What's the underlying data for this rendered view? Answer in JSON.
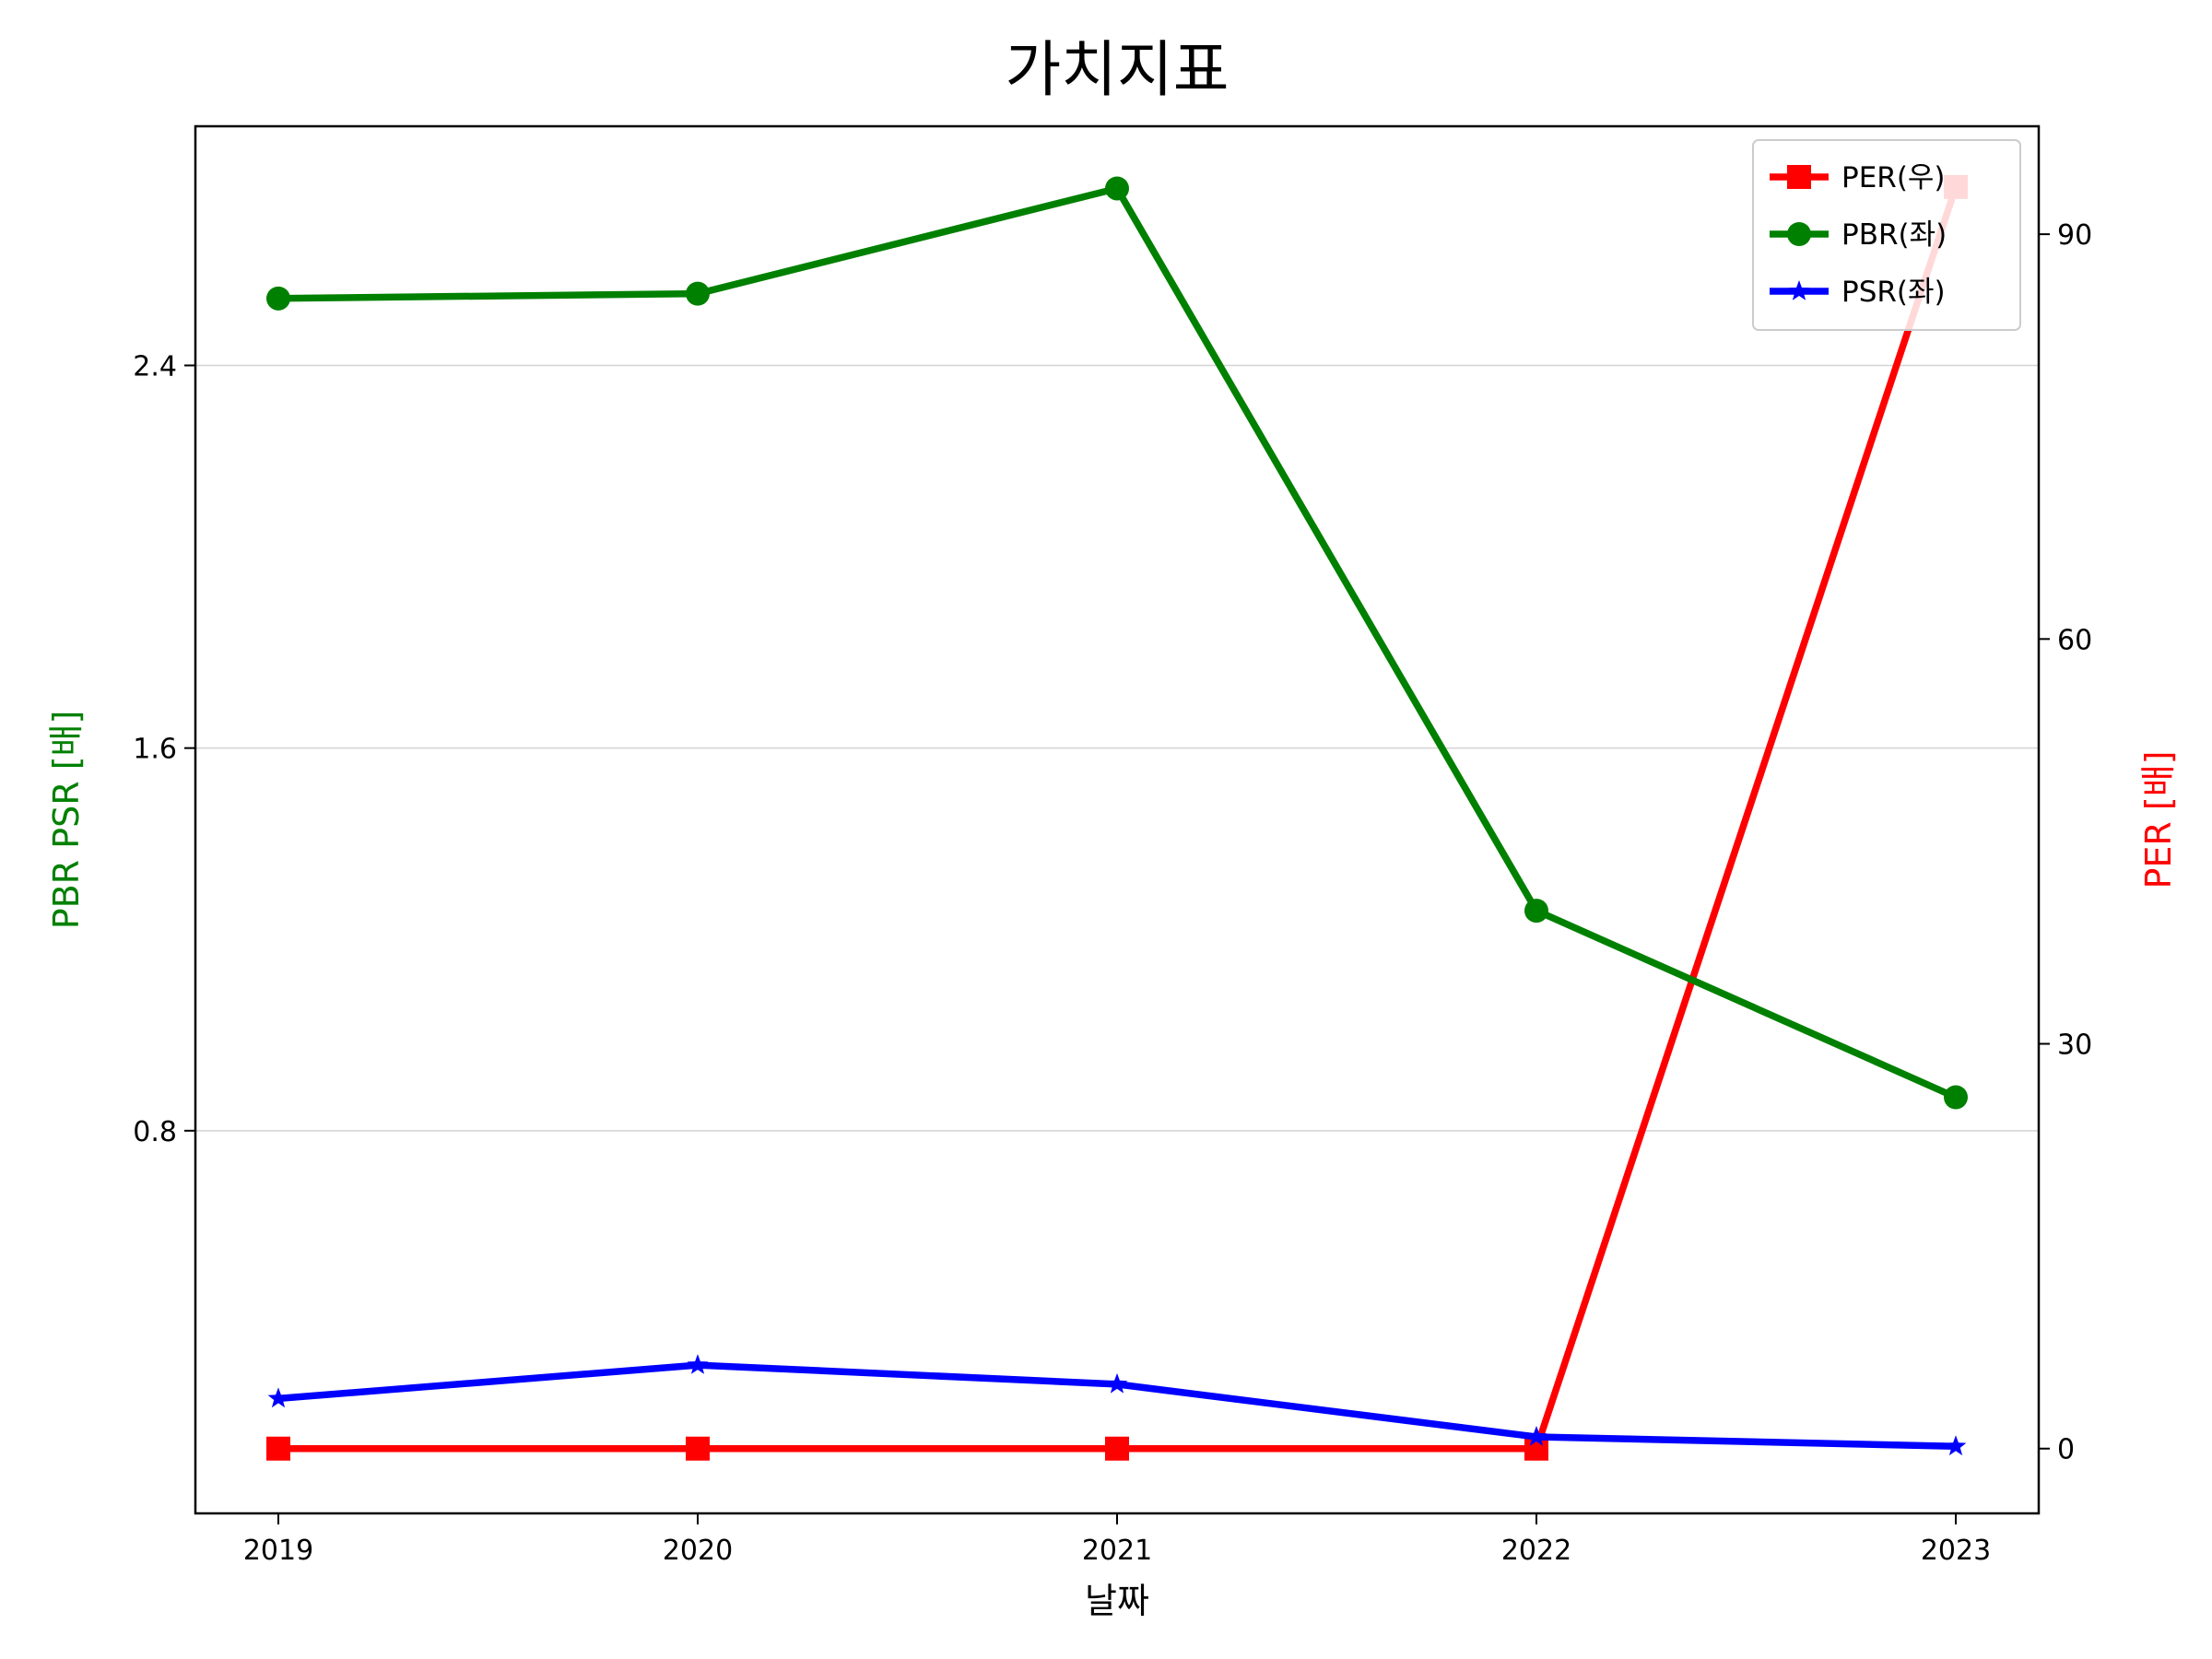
{
  "chart_data": {
    "type": "line",
    "title": "가치지표",
    "xlabel": "날짜",
    "ylabel_left": "PBR PSR [배]",
    "ylabel_right": "PER [배]",
    "categories": [
      "2019",
      "2020",
      "2021",
      "2022",
      "2023"
    ],
    "y_left": {
      "ylim": [
        0.0,
        2.9
      ],
      "ticks": [
        "0.8",
        "1.6",
        "2.4"
      ],
      "tick_values": [
        0.8,
        1.6,
        2.4
      ],
      "color": "#008000"
    },
    "y_right": {
      "ylim": [
        -4.8,
        98.0
      ],
      "ticks": [
        "0",
        "30",
        "60",
        "90"
      ],
      "tick_values": [
        0,
        30,
        60,
        90
      ],
      "color": "#ff0000"
    },
    "grid": "horizontal",
    "legend_position": "top-right",
    "series": [
      {
        "name": "PER(우)",
        "axis": "right",
        "color": "#ff0000",
        "marker": "square",
        "values": [
          0,
          0,
          0,
          0,
          93.5
        ]
      },
      {
        "name": "PBR(좌)",
        "axis": "left",
        "color": "#008000",
        "marker": "circle",
        "values": [
          2.54,
          2.55,
          2.77,
          1.26,
          0.87
        ]
      },
      {
        "name": "PSR(좌)",
        "axis": "left",
        "color": "#0000ff",
        "marker": "star",
        "values": [
          0.24,
          0.31,
          0.27,
          0.16,
          0.14
        ]
      }
    ]
  }
}
